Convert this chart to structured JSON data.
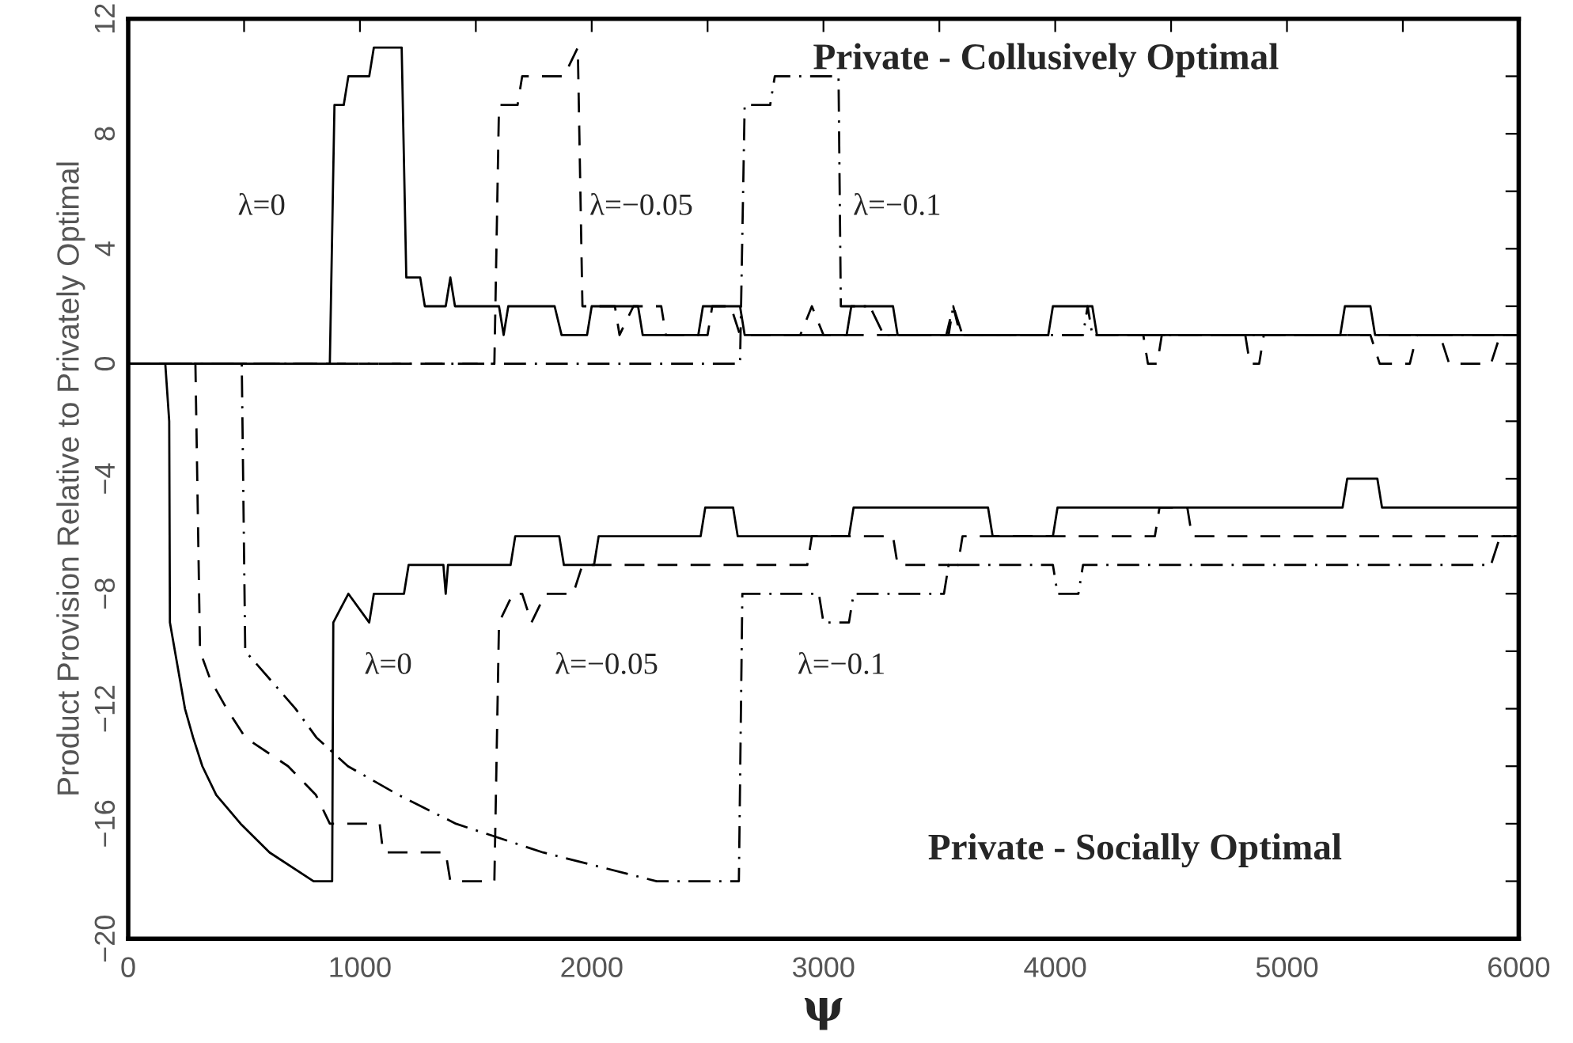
{
  "chart_data": {
    "type": "line",
    "xlabel": "ψ",
    "ylabel": "Product Provision Relative to Privately Optimal",
    "xlim": [
      0,
      6000
    ],
    "ylim": [
      -20,
      12
    ],
    "xticks": [
      0,
      {
        "value": 500,
        "label": null
      },
      1000,
      {
        "value": 1500,
        "label": null
      },
      2000,
      {
        "value": 2500,
        "label": null
      },
      3000,
      {
        "value": 3500,
        "label": null
      },
      4000,
      {
        "value": 4500,
        "label": null
      },
      5000,
      {
        "value": 5500,
        "label": null
      },
      6000
    ],
    "yticks": [
      -20,
      {
        "value": -18,
        "label": null
      },
      -16,
      {
        "value": -14,
        "label": null
      },
      -12,
      {
        "value": -10,
        "label": null
      },
      -8,
      {
        "value": -6,
        "label": null
      },
      -4,
      {
        "value": -2,
        "label": null
      },
      0,
      {
        "value": 2,
        "label": null
      },
      4,
      {
        "value": 6,
        "label": null
      },
      8,
      {
        "value": 10,
        "label": null
      },
      12
    ],
    "grid": false,
    "legend": false,
    "series": [
      {
        "color": "#000000",
        "line_style": "solid",
        "x": [
          0,
          870,
          890,
          930,
          950,
          1040,
          1060,
          1180,
          1200,
          1260,
          1280,
          1370,
          1390,
          1410,
          1600,
          1620,
          1640,
          1840,
          1870,
          1980,
          2000,
          2200,
          2220,
          2460,
          2480,
          2640,
          2660,
          3100,
          3120,
          3300,
          3320,
          3970,
          3990,
          4160,
          4180,
          5230,
          5250,
          5360,
          5380,
          6000
        ],
        "values": [
          0,
          0,
          9,
          9,
          10,
          10,
          11,
          11,
          3,
          3,
          2,
          2,
          3,
          2,
          2,
          1,
          2,
          2,
          1,
          1,
          2,
          2,
          1,
          1,
          2,
          2,
          1,
          1,
          2,
          2,
          1,
          1,
          2,
          2,
          1,
          1,
          2,
          2,
          1,
          1
        ]
      },
      {
        "color": "#000000",
        "line_style": "dashed",
        "x": [
          0,
          1580,
          1600,
          1680,
          1700,
          1880,
          1940,
          1960,
          2100,
          2120,
          2180,
          2300,
          2320,
          2500,
          2520,
          2600,
          2640,
          2900,
          2950,
          3000,
          3530,
          3560,
          3590,
          4380,
          4400,
          4440,
          4460,
          4820,
          4840,
          4880,
          4900,
          5360,
          5400,
          5530,
          5560,
          5660,
          5700,
          5880,
          5920,
          6000
        ],
        "values": [
          0,
          0,
          9,
          9,
          10,
          10,
          11,
          2,
          2,
          1,
          2,
          2,
          1,
          1,
          2,
          2,
          1,
          1,
          2,
          1,
          1,
          2,
          1,
          1,
          0,
          0,
          1,
          1,
          0,
          0,
          1,
          1,
          0,
          0,
          1,
          1,
          0,
          0,
          1,
          1
        ]
      },
      {
        "color": "#000000",
        "line_style": "dashdot",
        "x": [
          0,
          2640,
          2660,
          2770,
          2790,
          3065,
          3075,
          3200,
          3260,
          3540,
          3560,
          3600,
          4120,
          4140,
          4160,
          6000
        ],
        "values": [
          0,
          0,
          9,
          9,
          10,
          10,
          2,
          2,
          1,
          1,
          2,
          1,
          1,
          2,
          1,
          1
        ]
      },
      {
        "color": "#000000",
        "line_style": "solid",
        "x": [
          0,
          160,
          177,
          180,
          245,
          280,
          320,
          380,
          485,
          610,
          800,
          880,
          885,
          950,
          1040,
          1060,
          1190,
          1210,
          1360,
          1370,
          1380,
          1650,
          1670,
          1860,
          1880,
          2010,
          2030,
          2470,
          2490,
          2610,
          2630,
          3110,
          3130,
          3710,
          3730,
          3990,
          4010,
          5240,
          5260,
          5390,
          5410,
          6000
        ],
        "values": [
          0,
          0,
          -2,
          -9,
          -12,
          -13,
          -14,
          -15,
          -16,
          -17,
          -18,
          -18,
          -9,
          -8,
          -9,
          -8,
          -8,
          -7,
          -7,
          -8,
          -7,
          -7,
          -6,
          -6,
          -7,
          -7,
          -6,
          -6,
          -5,
          -5,
          -6,
          -6,
          -5,
          -5,
          -6,
          -6,
          -5,
          -5,
          -4,
          -4,
          -5,
          -5
        ]
      },
      {
        "color": "#000000",
        "line_style": "dashed",
        "x": [
          0,
          290,
          310,
          355,
          425,
          505,
          690,
          810,
          870,
          1085,
          1100,
          1370,
          1390,
          1580,
          1600,
          1660,
          1700,
          1740,
          1800,
          1920,
          1960,
          2930,
          2950,
          3300,
          3320,
          3580,
          3600,
          4430,
          4450,
          4570,
          4590,
          6000
        ],
        "values": [
          0,
          0,
          -10,
          -11,
          -12,
          -13,
          -14,
          -15,
          -16,
          -16,
          -17,
          -17,
          -18,
          -18,
          -9,
          -8,
          -8,
          -9,
          -8,
          -8,
          -7,
          -7,
          -6,
          -6,
          -7,
          -7,
          -6,
          -6,
          -5,
          -5,
          -6,
          -6
        ]
      },
      {
        "color": "#000000",
        "line_style": "dashdot",
        "x": [
          0,
          490,
          505,
          560,
          722,
          812,
          948,
          1166,
          1414,
          1790,
          2280,
          2635,
          2650,
          2980,
          3000,
          3110,
          3130,
          3520,
          3540,
          3990,
          4010,
          4100,
          4120,
          5440,
          5460,
          5880,
          5920,
          6000
        ],
        "values": [
          0,
          0,
          -10,
          -10.5,
          -12,
          -13,
          -14,
          -15,
          -16,
          -17,
          -18,
          -18,
          -8,
          -8,
          -9,
          -9,
          -8,
          -8,
          -7,
          -7,
          -8,
          -8,
          -7,
          -7,
          -7,
          -7,
          -6,
          -6
        ]
      }
    ],
    "annotations": [
      "λ=0",
      "λ=−0.05",
      "λ=−0.1",
      "Private - Collusively Optimal",
      "λ=0",
      "λ=−0.05",
      "λ=−0.1",
      "Private - Socially Optimal"
    ]
  }
}
